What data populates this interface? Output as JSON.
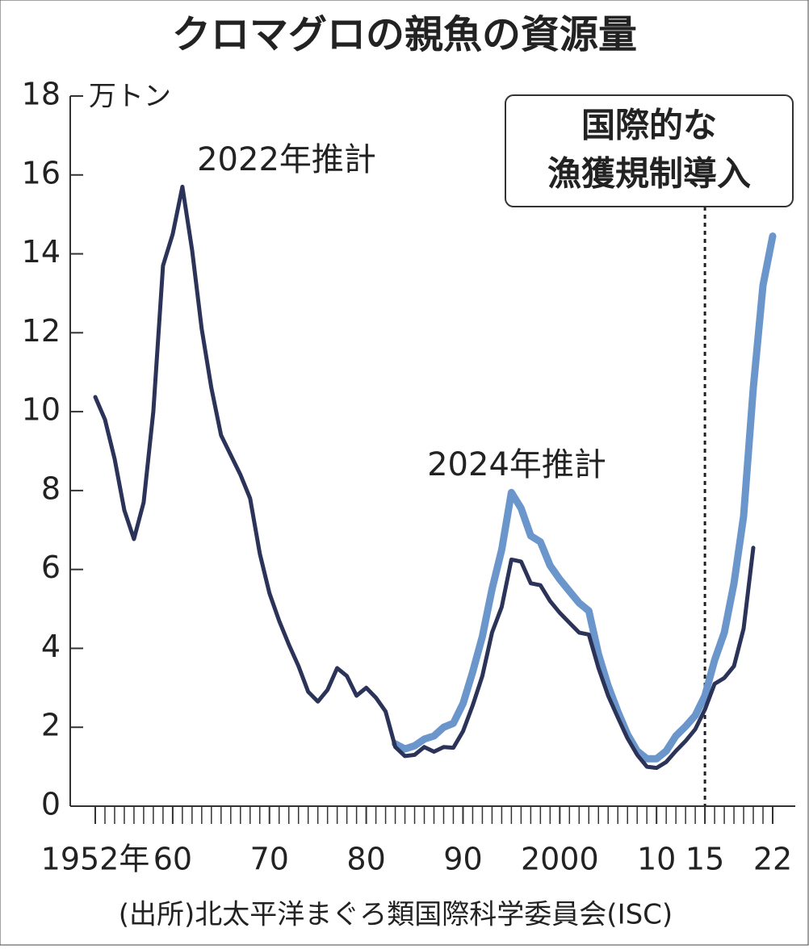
{
  "chart_data": {
    "type": "line",
    "title": "クロマグロの親魚の資源量",
    "y_unit": "万トン",
    "source": "(出所)北太平洋まぐろ類国際科学委員会(ISC)",
    "xlim": [
      1952,
      2022
    ],
    "ylim": [
      0,
      18
    ],
    "yticks": [
      0,
      2,
      4,
      6,
      8,
      10,
      12,
      14,
      16,
      18
    ],
    "xticks": [
      {
        "value": 1952,
        "label": "1952年"
      },
      {
        "value": 1960,
        "label": "60"
      },
      {
        "value": 1970,
        "label": "70"
      },
      {
        "value": 1980,
        "label": "80"
      },
      {
        "value": 1990,
        "label": "90"
      },
      2000,
      {
        "value": 2010,
        "label": "10"
      },
      {
        "value": 2015,
        "label": "15"
      },
      {
        "value": 2022,
        "label": "22"
      }
    ],
    "xminorticks": [
      1952,
      1953,
      1954,
      1955,
      1956,
      1957,
      1958,
      1959,
      1960,
      1961,
      1962,
      1963,
      1964,
      1965,
      1966,
      1967,
      1968,
      1969,
      1970,
      1971,
      1972,
      1973,
      1974,
      1975,
      1976,
      1977,
      1978,
      1979,
      1980,
      1981,
      1982,
      1983,
      1984,
      1985,
      1986,
      1987,
      1988,
      1989,
      1990,
      1991,
      1992,
      1993,
      1994,
      1995,
      1996,
      1997,
      1998,
      1999,
      2000,
      2001,
      2002,
      2003,
      2004,
      2005,
      2006,
      2007,
      2008,
      2009,
      2010,
      2011,
      2012,
      2013,
      2014,
      2015,
      2016,
      2017,
      2018,
      2019,
      2020,
      2021,
      2022
    ],
    "vline": {
      "x": 2015,
      "label": [
        "国際的な",
        "漁獲規制導入"
      ]
    },
    "series": [
      {
        "name": "2022年推計",
        "color": "#2b3358",
        "x": [
          1952,
          1953,
          1954,
          1955,
          1956,
          1957,
          1958,
          1959,
          1960,
          1961,
          1962,
          1963,
          1964,
          1965,
          1966,
          1967,
          1968,
          1969,
          1970,
          1971,
          1972,
          1973,
          1974,
          1975,
          1976,
          1977,
          1978,
          1979,
          1980,
          1981,
          1982,
          1983,
          1984,
          1985,
          1986,
          1987,
          1988,
          1989,
          1990,
          1991,
          1992,
          1993,
          1994,
          1995,
          1996,
          1997,
          1998,
          1999,
          2000,
          2001,
          2002,
          2003,
          2004,
          2005,
          2006,
          2007,
          2008,
          2009,
          2010,
          2011,
          2012,
          2013,
          2014,
          2015,
          2016,
          2017,
          2018,
          2019,
          2020
        ],
        "values": [
          10.37,
          9.8,
          8.8,
          7.5,
          6.77,
          7.7,
          10.0,
          13.7,
          14.5,
          15.7,
          14.1,
          12.1,
          10.6,
          9.4,
          8.9,
          8.4,
          7.8,
          6.4,
          5.4,
          4.7,
          4.1,
          3.55,
          2.9,
          2.65,
          2.95,
          3.5,
          3.3,
          2.8,
          3.0,
          2.75,
          2.4,
          1.5,
          1.27,
          1.3,
          1.5,
          1.38,
          1.5,
          1.48,
          1.9,
          2.55,
          3.3,
          4.4,
          5.05,
          6.25,
          6.2,
          5.65,
          5.6,
          5.2,
          4.9,
          4.65,
          4.4,
          4.35,
          3.5,
          2.8,
          2.25,
          1.72,
          1.3,
          1.0,
          0.97,
          1.12,
          1.4,
          1.65,
          1.95,
          2.45,
          3.1,
          3.25,
          3.55,
          4.5,
          6.55
        ]
      },
      {
        "name": "2024年推計",
        "color": "#6a96cc",
        "x": [
          1983,
          1984,
          1985,
          1986,
          1987,
          1988,
          1989,
          1990,
          1991,
          1992,
          1993,
          1994,
          1995,
          1996,
          1997,
          1998,
          1999,
          2000,
          2001,
          2002,
          2003,
          2004,
          2005,
          2006,
          2007,
          2008,
          2009,
          2010,
          2011,
          2012,
          2013,
          2014,
          2015,
          2016,
          2017,
          2018,
          2019,
          2020,
          2021,
          2022
        ],
        "values": [
          1.58,
          1.45,
          1.53,
          1.7,
          1.78,
          2.0,
          2.1,
          2.6,
          3.4,
          4.3,
          5.5,
          6.5,
          7.95,
          7.55,
          6.85,
          6.7,
          6.1,
          5.75,
          5.45,
          5.15,
          4.95,
          3.85,
          3.05,
          2.4,
          1.82,
          1.4,
          1.2,
          1.2,
          1.4,
          1.78,
          2.02,
          2.3,
          2.8,
          3.7,
          4.4,
          5.65,
          7.35,
          10.6,
          13.2,
          14.45
        ]
      }
    ]
  }
}
